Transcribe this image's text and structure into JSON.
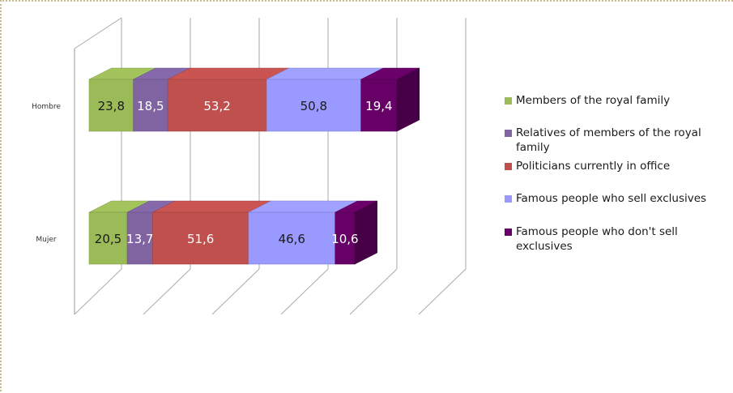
{
  "chart_data": {
    "type": "bar",
    "orientation": "horizontal",
    "stacked": true,
    "three_d": true,
    "categories": [
      "Hombre",
      "Mujer"
    ],
    "series": [
      {
        "name": "Members of the royal family",
        "color": "#9bbb59",
        "values": [
          23.8,
          20.5
        ]
      },
      {
        "name": "Relatives of members of the royal family",
        "color": "#8064a2",
        "values": [
          18.5,
          13.7
        ]
      },
      {
        "name": "Politicians currently in office",
        "color": "#c0504d",
        "values": [
          53.2,
          51.6
        ]
      },
      {
        "name": "Famous people who sell exclusives",
        "color": "#9999ff",
        "values": [
          50.8,
          46.6
        ]
      },
      {
        "name": "Famous people who don't sell exclusives",
        "color": "#660066",
        "values": [
          19.4,
          10.6
        ]
      }
    ],
    "grid": true,
    "legend_position": "right",
    "data_labels": true
  }
}
